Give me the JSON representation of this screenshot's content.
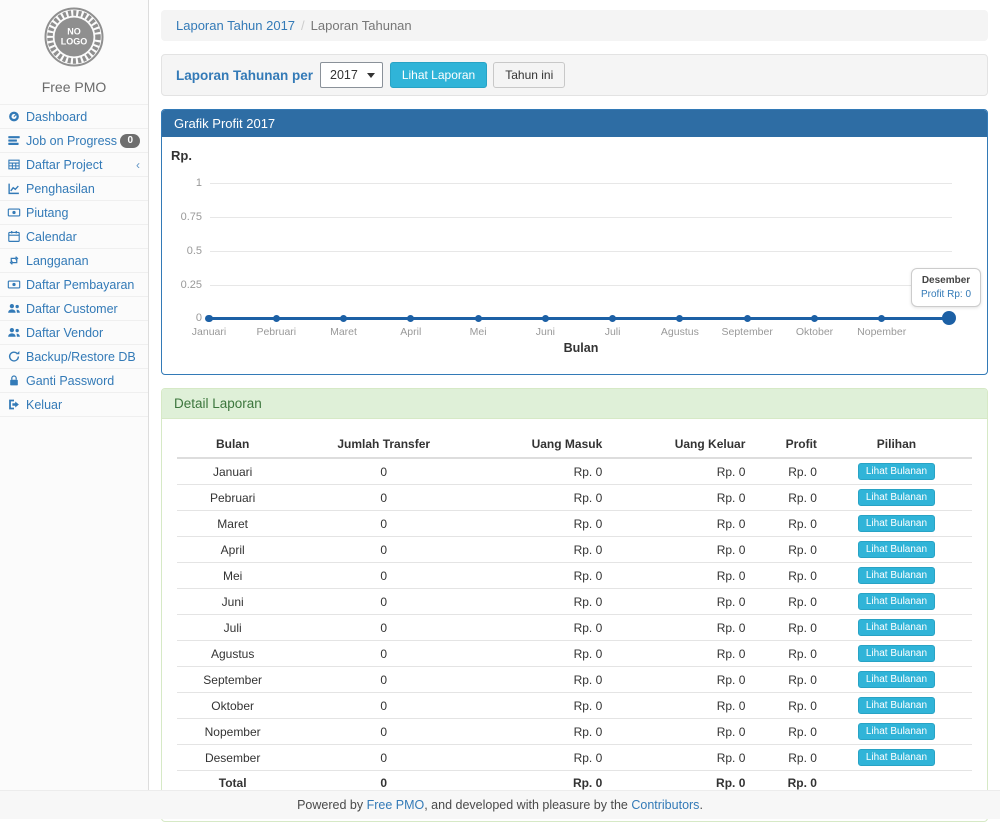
{
  "sidebar": {
    "logo_line1": "NO",
    "logo_line2": "LOGO",
    "brand": "Free PMO",
    "items": [
      {
        "label": "Dashboard",
        "icon": "dashboard-icon"
      },
      {
        "label": "Job on Progress",
        "icon": "tasks-icon",
        "badge": "0"
      },
      {
        "label": "Daftar Project",
        "icon": "table-icon",
        "chevron": "‹"
      },
      {
        "label": "Penghasilan",
        "icon": "line-chart-icon"
      },
      {
        "label": "Piutang",
        "icon": "money-icon"
      },
      {
        "label": "Calendar",
        "icon": "calendar-icon"
      },
      {
        "label": "Langganan",
        "icon": "retweet-icon"
      },
      {
        "label": "Daftar Pembayaran",
        "icon": "money-icon"
      },
      {
        "label": "Daftar Customer",
        "icon": "users-icon"
      },
      {
        "label": "Daftar Vendor",
        "icon": "users-icon"
      },
      {
        "label": "Backup/Restore DB",
        "icon": "refresh-icon"
      },
      {
        "label": "Ganti Password",
        "icon": "lock-icon"
      },
      {
        "label": "Keluar",
        "icon": "sign-out-icon"
      }
    ]
  },
  "breadcrumb": {
    "link": "Laporan Tahun 2017",
    "separator": "/",
    "current": "Laporan Tahunan"
  },
  "filter": {
    "label": "Laporan Tahunan per",
    "year_select": "2017",
    "view_button": "Lihat Laporan",
    "this_year_button": "Tahun ini"
  },
  "chart_panel": {
    "title": "Grafik Profit 2017"
  },
  "chart_data": {
    "type": "line",
    "title": "Grafik Profit 2017",
    "xlabel": "Bulan",
    "ylabel": "Rp.",
    "x": [
      "Januari",
      "Pebruari",
      "Maret",
      "April",
      "Mei",
      "Juni",
      "Juli",
      "Agustus",
      "September",
      "Oktober",
      "Nopember",
      "Desember"
    ],
    "series": [
      {
        "name": "Profit",
        "values": [
          0,
          0,
          0,
          0,
          0,
          0,
          0,
          0,
          0,
          0,
          0,
          0
        ]
      }
    ],
    "yticks": [
      0,
      0.25,
      0.5,
      0.75,
      1
    ],
    "ylim": [
      0,
      1
    ],
    "grid": true,
    "legend_position": "none",
    "line_color": "#1c60a5",
    "tooltip": {
      "label": "Desember",
      "value": "Profit Rp: 0"
    }
  },
  "detail_panel": {
    "title": "Detail Laporan",
    "columns": [
      "Bulan",
      "Jumlah Transfer",
      "Uang Masuk",
      "Uang Keluar",
      "Profit",
      "Pilihan"
    ],
    "rows": [
      {
        "bulan": "Januari",
        "jumlah": "0",
        "masuk": "Rp. 0",
        "keluar": "Rp. 0",
        "profit": "Rp. 0",
        "action": "Lihat Bulanan"
      },
      {
        "bulan": "Pebruari",
        "jumlah": "0",
        "masuk": "Rp. 0",
        "keluar": "Rp. 0",
        "profit": "Rp. 0",
        "action": "Lihat Bulanan"
      },
      {
        "bulan": "Maret",
        "jumlah": "0",
        "masuk": "Rp. 0",
        "keluar": "Rp. 0",
        "profit": "Rp. 0",
        "action": "Lihat Bulanan"
      },
      {
        "bulan": "April",
        "jumlah": "0",
        "masuk": "Rp. 0",
        "keluar": "Rp. 0",
        "profit": "Rp. 0",
        "action": "Lihat Bulanan"
      },
      {
        "bulan": "Mei",
        "jumlah": "0",
        "masuk": "Rp. 0",
        "keluar": "Rp. 0",
        "profit": "Rp. 0",
        "action": "Lihat Bulanan"
      },
      {
        "bulan": "Juni",
        "jumlah": "0",
        "masuk": "Rp. 0",
        "keluar": "Rp. 0",
        "profit": "Rp. 0",
        "action": "Lihat Bulanan"
      },
      {
        "bulan": "Juli",
        "jumlah": "0",
        "masuk": "Rp. 0",
        "keluar": "Rp. 0",
        "profit": "Rp. 0",
        "action": "Lihat Bulanan"
      },
      {
        "bulan": "Agustus",
        "jumlah": "0",
        "masuk": "Rp. 0",
        "keluar": "Rp. 0",
        "profit": "Rp. 0",
        "action": "Lihat Bulanan"
      },
      {
        "bulan": "September",
        "jumlah": "0",
        "masuk": "Rp. 0",
        "keluar": "Rp. 0",
        "profit": "Rp. 0",
        "action": "Lihat Bulanan"
      },
      {
        "bulan": "Oktober",
        "jumlah": "0",
        "masuk": "Rp. 0",
        "keluar": "Rp. 0",
        "profit": "Rp. 0",
        "action": "Lihat Bulanan"
      },
      {
        "bulan": "Nopember",
        "jumlah": "0",
        "masuk": "Rp. 0",
        "keluar": "Rp. 0",
        "profit": "Rp. 0",
        "action": "Lihat Bulanan"
      },
      {
        "bulan": "Desember",
        "jumlah": "0",
        "masuk": "Rp. 0",
        "keluar": "Rp. 0",
        "profit": "Rp. 0",
        "action": "Lihat Bulanan"
      }
    ],
    "total": {
      "bulan": "Total",
      "jumlah": "0",
      "masuk": "Rp. 0",
      "keluar": "Rp. 0",
      "profit": "Rp. 0"
    }
  },
  "footer": {
    "prefix": "Powered by ",
    "link1": "Free PMO",
    "middle": ", and developed with pleasure by the ",
    "link2": "Contributors",
    "suffix": "."
  },
  "colors": {
    "link_blue": "#337ab7",
    "panel_primary_header": "#2e6da4",
    "panel_success_bg": "#dff0d8",
    "panel_success_text": "#3c763d",
    "info_button": "#30b4d8",
    "chart_line": "#1c60a5"
  }
}
